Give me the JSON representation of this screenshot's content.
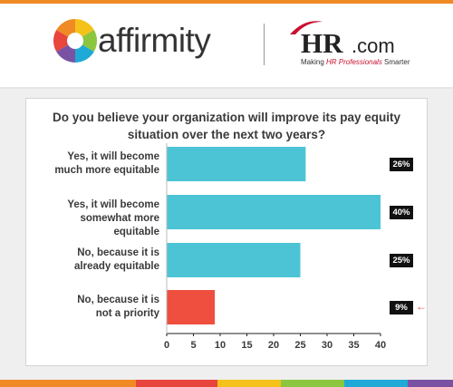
{
  "header": {
    "brand": "affirmity",
    "partner_logo": "HR",
    "partner_domain": ".com",
    "tagline_pre": "Making ",
    "tagline_red": "HR Professionals",
    "tagline_post": " Smarter"
  },
  "colors": {
    "bar_primary": "#4cc4d6",
    "bar_highlight": "#ef4f3f",
    "badge": "#111111",
    "stripe": [
      "#f08a24",
      "#e8453c",
      "#f5c21b",
      "#8cc63f",
      "#1fa9d6",
      "#7a52a3"
    ]
  },
  "chart_data": {
    "type": "bar",
    "orientation": "horizontal",
    "title": "Do you believe your organization will improve its pay equity situation over the next two years?",
    "categories": [
      "Yes, it will become much more equitable",
      "Yes, it will become somewhat more equitable",
      "No, because it is already equitable",
      "No, because it is not a priority"
    ],
    "category_lines": [
      [
        "Yes, it will become",
        "much more equitable"
      ],
      [
        "Yes, it will become",
        "somewhat more equitable"
      ],
      [
        "No, because it is",
        "already equitable"
      ],
      [
        "No, because it is",
        "not a priority"
      ]
    ],
    "values": [
      26,
      40,
      25,
      9
    ],
    "value_labels": [
      "26%",
      "40%",
      "25%",
      "9%"
    ],
    "highlight_index": 3,
    "xlim": [
      0,
      40
    ],
    "xticks": [
      0,
      5,
      10,
      15,
      20,
      25,
      30,
      35,
      40
    ],
    "xlabel": "",
    "ylabel": "",
    "grid": false
  }
}
